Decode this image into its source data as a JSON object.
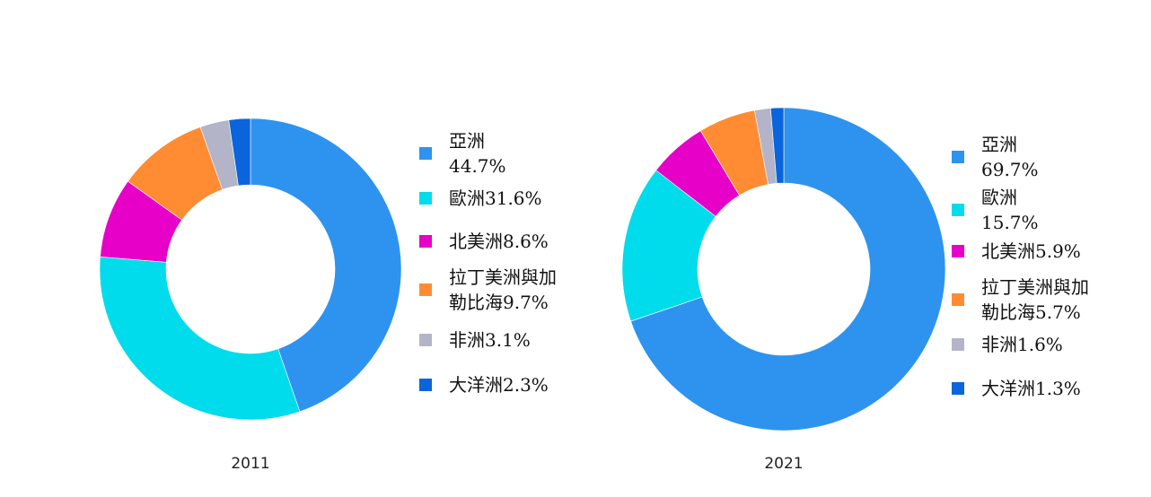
{
  "chart_data": [
    {
      "type": "donut",
      "title": "2011",
      "series": [
        {
          "name": "亞洲",
          "value": 44.7,
          "label_lines": [
            "亞洲",
            "44.7%"
          ],
          "color": "#2E93EE"
        },
        {
          "name": "歐洲",
          "value": 31.6,
          "label_lines": [
            "歐洲31.6%"
          ],
          "color": "#00DCEB"
        },
        {
          "name": "北美洲",
          "value": 8.6,
          "label_lines": [
            "北美洲8.6%"
          ],
          "color": "#E600C8"
        },
        {
          "name": "拉丁美洲與加勒比海",
          "value": 9.7,
          "label_lines": [
            "拉丁美洲與加",
            "勒比海9.7%"
          ],
          "color": "#FF8C32"
        },
        {
          "name": "非洲",
          "value": 3.1,
          "label_lines": [
            "非洲3.1%"
          ],
          "color": "#B4B4C8"
        },
        {
          "name": "大洋洲",
          "value": 2.3,
          "label_lines": [
            "大洋洲2.3%"
          ],
          "color": "#0A64DC"
        }
      ]
    },
    {
      "type": "donut",
      "title": "2021",
      "series": [
        {
          "name": "亞洲",
          "value": 69.7,
          "label_lines": [
            "亞洲",
            "69.7%"
          ],
          "color": "#2E93EE"
        },
        {
          "name": "歐洲",
          "value": 15.7,
          "label_lines": [
            "歐洲",
            "15.7%"
          ],
          "color": "#00DCEB"
        },
        {
          "name": "北美洲",
          "value": 5.9,
          "label_lines": [
            "北美洲5.9%"
          ],
          "color": "#E600C8"
        },
        {
          "name": "拉丁美洲與加勒比海",
          "value": 5.7,
          "label_lines": [
            "拉丁美洲與加",
            "勒比海5.7%"
          ],
          "color": "#FF8C32"
        },
        {
          "name": "非洲",
          "value": 1.6,
          "label_lines": [
            "非洲1.6%"
          ],
          "color": "#B4B4C8"
        },
        {
          "name": "大洋洲",
          "value": 1.3,
          "label_lines": [
            "大洋洲1.3%"
          ],
          "color": "#0A64DC"
        }
      ]
    }
  ]
}
